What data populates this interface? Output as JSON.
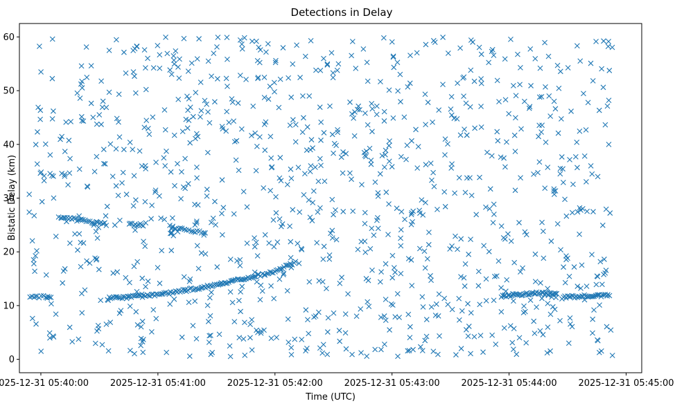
{
  "chart_data": {
    "type": "scatter",
    "title": "Detections in Delay",
    "xlabel": "Time (UTC)",
    "ylabel": "Bistatic Delay (km)",
    "marker": "x",
    "color": "#1f77b4",
    "grid": false,
    "x_range": [
      "2025-12-31 05:39:49",
      "2025-12-31 05:45:08"
    ],
    "ylim": [
      -2.5,
      62.5
    ],
    "x_ticks": [
      "2025-12-31 05:40:00",
      "2025-12-31 05:41:00",
      "2025-12-31 05:42:00",
      "2025-12-31 05:43:00",
      "2025-12-31 05:44:00",
      "2025-12-31 05:45:00"
    ],
    "y_ticks": [
      0,
      10,
      20,
      30,
      40,
      50,
      60
    ],
    "time_span": [
      "2025-12-31 05:39:54",
      "2025-12-31 05:44:53"
    ],
    "noise_count": 1060,
    "noise_delay_range": [
      0.5,
      60
    ],
    "tracks": [
      {
        "name": "",
        "points": [
          [
            "2025-12-31 05:39:54",
            11.8
          ],
          [
            "2025-12-31 05:40:06",
            11.5
          ]
        ],
        "count": 12
      },
      {
        "name": "",
        "points": [
          [
            "2025-12-31 05:40:09",
            26.5
          ],
          [
            "2025-12-31 05:40:34",
            25.1
          ]
        ],
        "count": 30
      },
      {
        "name": "",
        "points": [
          [
            "2025-12-31 05:40:45",
            25.1
          ],
          [
            "2025-12-31 05:40:53",
            25.0
          ]
        ],
        "count": 10
      },
      {
        "name": "",
        "points": [
          [
            "2025-12-31 05:41:06",
            24.7
          ],
          [
            "2025-12-31 05:41:25",
            23.4
          ]
        ],
        "count": 18
      },
      {
        "name": "",
        "points": [
          [
            "2025-12-31 05:40:34",
            11.3
          ],
          [
            "2025-12-31 05:41:00",
            12.0
          ],
          [
            "2025-12-31 05:41:30",
            13.8
          ],
          [
            "2025-12-31 05:42:00",
            16.3
          ],
          [
            "2025-12-31 05:42:11",
            18.2
          ]
        ],
        "count": 120
      },
      {
        "name": "",
        "points": [
          [
            "2025-12-31 05:43:56",
            11.8
          ],
          [
            "2025-12-31 05:44:13",
            12.3
          ],
          [
            "2025-12-31 05:44:25",
            12.2
          ]
        ],
        "count": 45
      },
      {
        "name": "",
        "points": [
          [
            "2025-12-31 05:44:27",
            11.5
          ],
          [
            "2025-12-31 05:44:52",
            12.0
          ]
        ],
        "count": 35
      }
    ]
  }
}
